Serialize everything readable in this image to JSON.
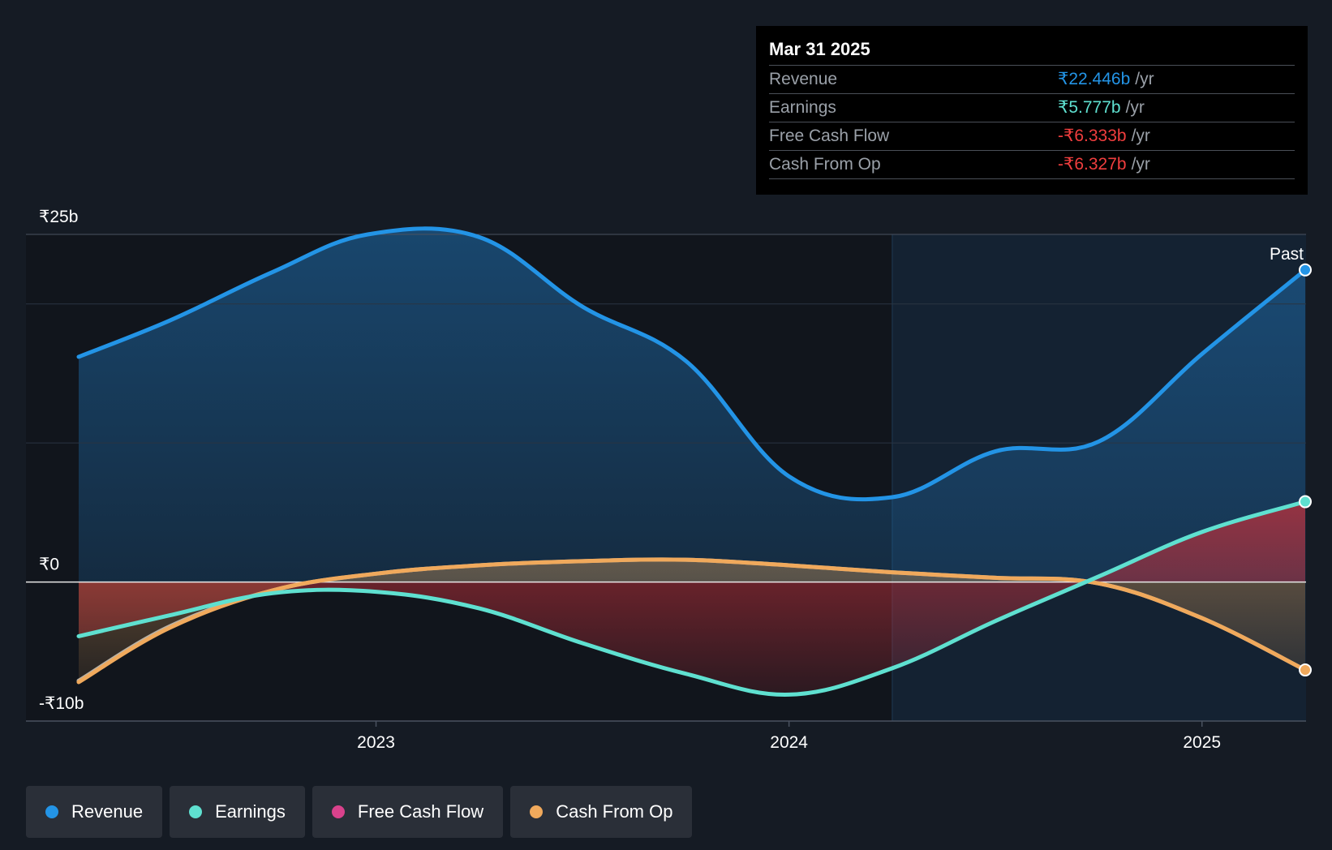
{
  "chart_data": {
    "type": "area",
    "x_axis": {
      "ticks": [
        "2023",
        "2024",
        "2025"
      ],
      "tick_values": [
        2023.0,
        2024.0,
        2025.0
      ],
      "range": [
        2022.28,
        2025.25
      ]
    },
    "y_axis": {
      "labels": [
        "₹25b",
        "₹0",
        "-₹10b"
      ],
      "range": [
        -10,
        25
      ],
      "unit": "₹b"
    },
    "past_label": "Past",
    "past_start_x": 2024.25,
    "series": [
      {
        "name": "Revenue",
        "color": "#2394e6",
        "points": [
          [
            2022.28,
            16.2
          ],
          [
            2022.5,
            18.8
          ],
          [
            2022.75,
            22.3
          ],
          [
            2022.98,
            25.0
          ],
          [
            2023.25,
            24.8
          ],
          [
            2023.5,
            19.8
          ],
          [
            2023.75,
            15.9
          ],
          [
            2024.0,
            7.6
          ],
          [
            2024.25,
            6.1
          ],
          [
            2024.5,
            9.4
          ],
          [
            2024.75,
            10.1
          ],
          [
            2025.0,
            16.4
          ],
          [
            2025.25,
            22.446
          ]
        ]
      },
      {
        "name": "Earnings",
        "color": "#5fe0d0",
        "points": [
          [
            2022.28,
            -3.9
          ],
          [
            2022.5,
            -2.4
          ],
          [
            2022.75,
            -0.8
          ],
          [
            2023.0,
            -0.7
          ],
          [
            2023.25,
            -1.9
          ],
          [
            2023.5,
            -4.4
          ],
          [
            2023.75,
            -6.6
          ],
          [
            2024.0,
            -8.1
          ],
          [
            2024.25,
            -6.2
          ],
          [
            2024.5,
            -2.8
          ],
          [
            2024.75,
            0.4
          ],
          [
            2025.0,
            3.6
          ],
          [
            2025.25,
            5.777
          ]
        ]
      },
      {
        "name": "Free Cash Flow",
        "color": "#d9428c",
        "points": [
          [
            2022.28,
            -7.1
          ],
          [
            2022.5,
            -3.2
          ],
          [
            2022.75,
            -0.6
          ],
          [
            2023.0,
            0.6
          ],
          [
            2023.25,
            1.2
          ],
          [
            2023.5,
            1.5
          ],
          [
            2023.75,
            1.6
          ],
          [
            2024.0,
            1.2
          ],
          [
            2024.25,
            0.7
          ],
          [
            2024.5,
            0.3
          ],
          [
            2024.75,
            -0.1
          ],
          [
            2025.0,
            -2.6
          ],
          [
            2025.25,
            -6.333
          ]
        ]
      },
      {
        "name": "Cash From Op",
        "color": "#f0a95c",
        "points": [
          [
            2022.28,
            -7.2
          ],
          [
            2022.5,
            -3.3
          ],
          [
            2022.75,
            -0.6
          ],
          [
            2023.0,
            0.6
          ],
          [
            2023.25,
            1.2
          ],
          [
            2023.5,
            1.5
          ],
          [
            2023.75,
            1.6
          ],
          [
            2024.0,
            1.2
          ],
          [
            2024.25,
            0.7
          ],
          [
            2024.5,
            0.3
          ],
          [
            2024.75,
            -0.1
          ],
          [
            2025.0,
            -2.6
          ],
          [
            2025.25,
            -6.327
          ]
        ]
      }
    ]
  },
  "tooltip": {
    "date": "Mar 31 2025",
    "rows": [
      {
        "label": "Revenue",
        "value": "₹22.446b",
        "unit": "/yr",
        "color": "#2394e6"
      },
      {
        "label": "Earnings",
        "value": "₹5.777b",
        "unit": "/yr",
        "color": "#5fe0d0"
      },
      {
        "label": "Free Cash Flow",
        "value": "-₹6.333b",
        "unit": "/yr",
        "color": "#f03e3e"
      },
      {
        "label": "Cash From Op",
        "value": "-₹6.327b",
        "unit": "/yr",
        "color": "#f03e3e"
      }
    ]
  },
  "legend": [
    {
      "label": "Revenue",
      "color": "#2394e6"
    },
    {
      "label": "Earnings",
      "color": "#5fe0d0"
    },
    {
      "label": "Free Cash Flow",
      "color": "#d9428c"
    },
    {
      "label": "Cash From Op",
      "color": "#f0a95c"
    }
  ]
}
